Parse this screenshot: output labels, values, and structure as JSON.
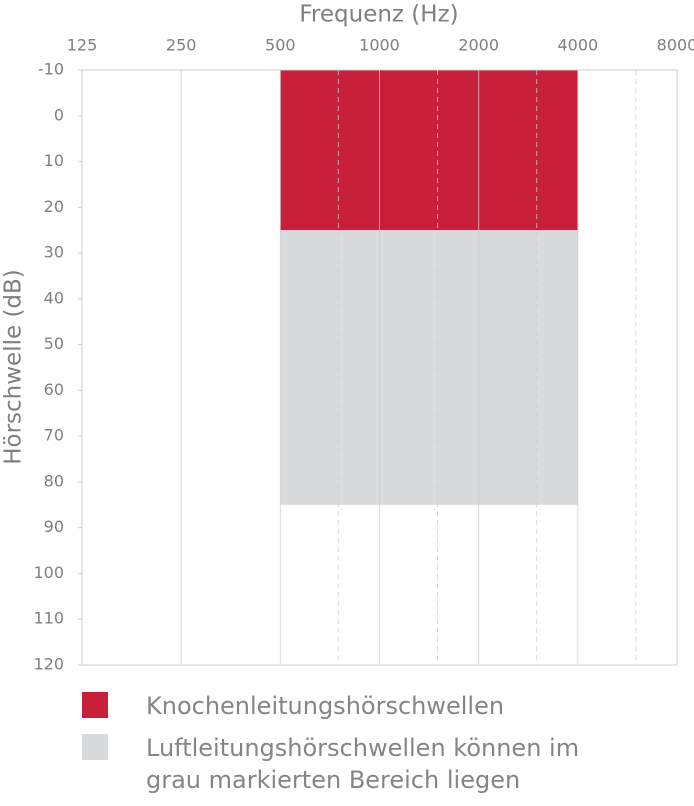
{
  "chart_data": {
    "type": "band",
    "xlabel": "Frequenz (Hz)",
    "ylabel": "Hörschwelle (dB)",
    "xscale": "log",
    "xlim": [
      125,
      8000
    ],
    "xticks": [
      125,
      250,
      500,
      1000,
      2000,
      4000,
      8000
    ],
    "xminorticks": [
      750,
      1500,
      3000,
      6000
    ],
    "ylim": [
      -10,
      120
    ],
    "yticks": [
      -10,
      0,
      10,
      20,
      30,
      40,
      50,
      60,
      70,
      80,
      90,
      100,
      110,
      120
    ],
    "yinverted": true,
    "grid": true,
    "series": [
      {
        "name": "Knochenleitungshörschwellen",
        "color": "#c8203a",
        "xrange": [
          500,
          4000
        ],
        "yrange": [
          -10,
          25
        ]
      },
      {
        "name": "Luftleitungshörschwellen können im grau markierten Bereich liegen",
        "color": "#d9dadc",
        "xrange": [
          500,
          4000
        ],
        "yrange": [
          25,
          85
        ]
      }
    ]
  }
}
